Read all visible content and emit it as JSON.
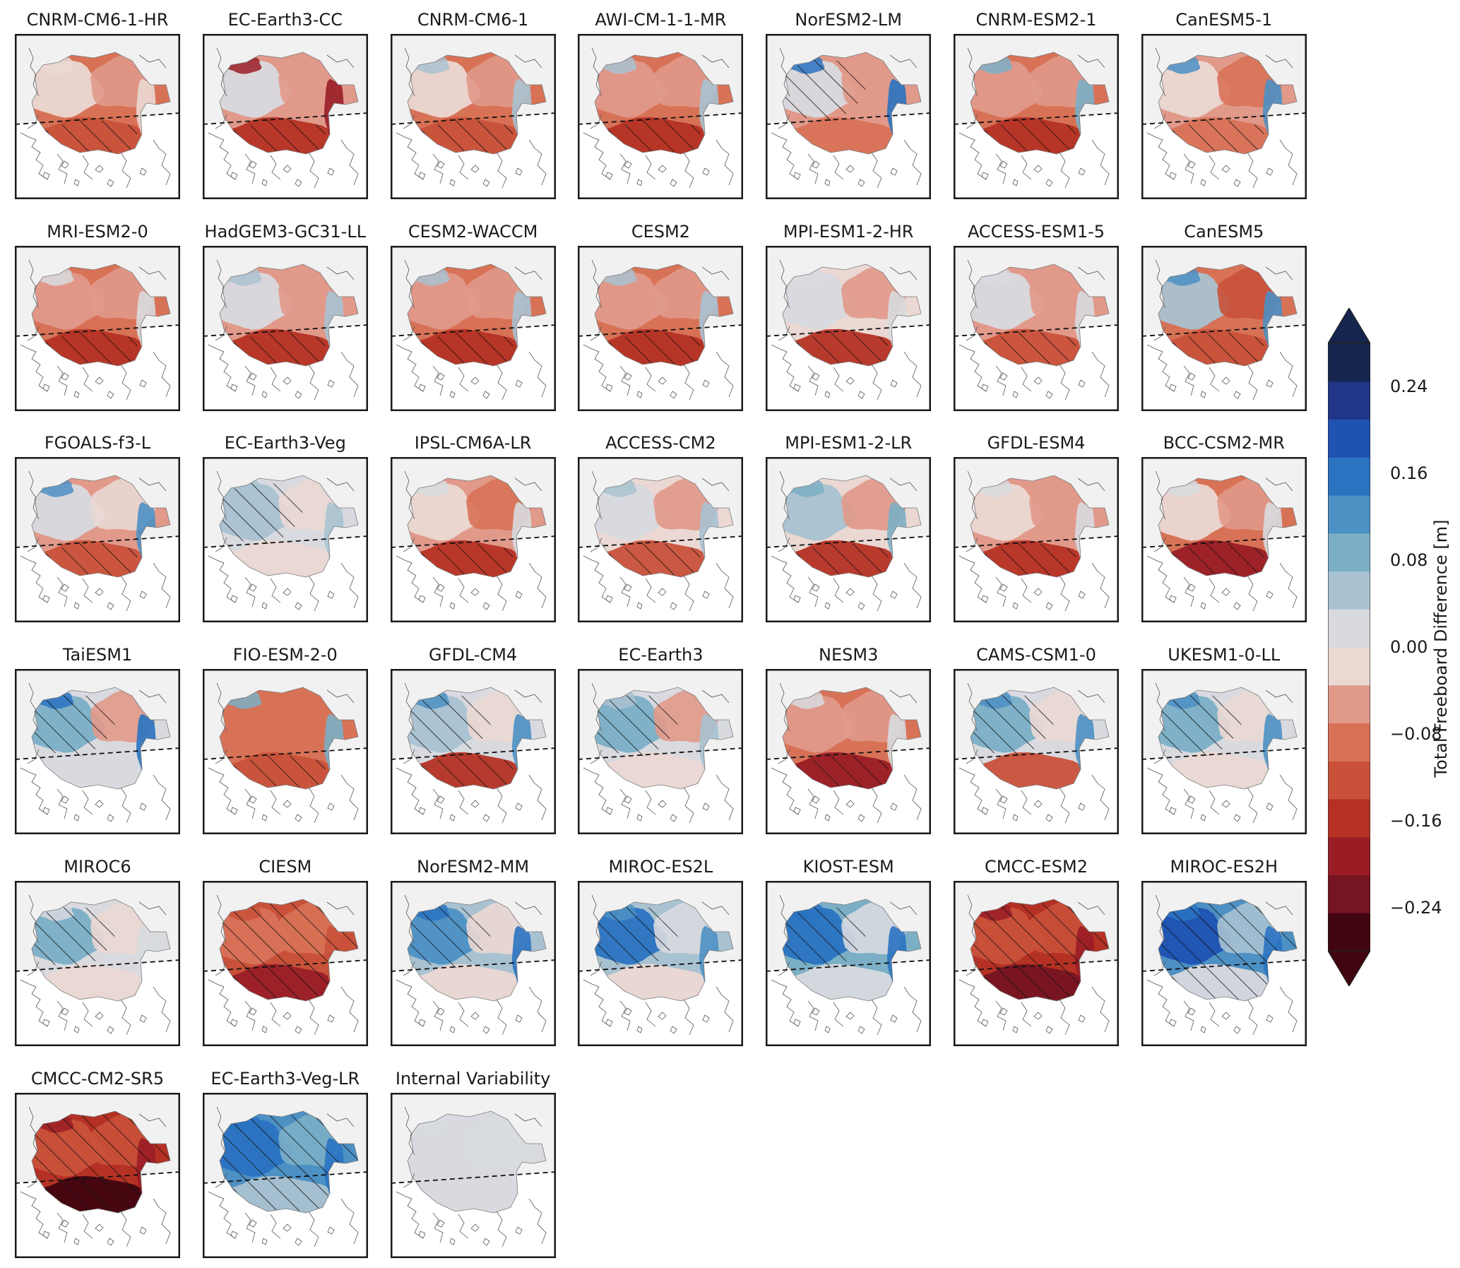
{
  "panels": [
    {
      "title": "CNRM-CM6-1-HR",
      "map": {
        "mean": -0.05,
        "west": 0.0,
        "south": -0.12,
        "east": -0.02,
        "coast": 0.0,
        "hatch": "south"
      }
    },
    {
      "title": "EC-Earth3-CC",
      "map": {
        "mean": -0.01,
        "west": 0.06,
        "south": -0.13,
        "east": -0.03,
        "coast": -0.18,
        "hatch": "south"
      }
    },
    {
      "title": "CNRM-CM6-1",
      "map": {
        "mean": -0.05,
        "west": 0.0,
        "south": -0.12,
        "east": -0.03,
        "coast": 0.1,
        "hatch": "south"
      }
    },
    {
      "title": "AWI-CM-1-1-MR",
      "map": {
        "mean": -0.06,
        "west": -0.02,
        "south": -0.14,
        "east": -0.03,
        "coast": 0.08,
        "hatch": "south"
      }
    },
    {
      "title": "NorESM2-LM",
      "map": {
        "mean": -0.02,
        "west": 0.05,
        "south": -0.05,
        "east": -0.03,
        "coast": 0.2,
        "hatch": "west"
      }
    },
    {
      "title": "CNRM-ESM2-1",
      "map": {
        "mean": -0.07,
        "west": -0.04,
        "south": -0.16,
        "east": -0.04,
        "coast": 0.12,
        "hatch": "south"
      }
    },
    {
      "title": "CanESM5-1",
      "map": {
        "mean": -0.03,
        "west": 0.02,
        "south": -0.08,
        "east": -0.06,
        "coast": 0.16,
        "hatch": "south"
      }
    },
    {
      "title": "MRI-ESM2-0",
      "map": {
        "mean": -0.05,
        "west": -0.03,
        "south": -0.14,
        "east": -0.03,
        "coast": 0.05,
        "hatch": "south"
      }
    },
    {
      "title": "HadGEM3-GC31-LL",
      "map": {
        "mean": -0.01,
        "west": 0.04,
        "south": -0.14,
        "east": -0.02,
        "coast": 0.08,
        "hatch": "south"
      }
    },
    {
      "title": "CESM2-WACCM",
      "map": {
        "mean": -0.05,
        "west": -0.02,
        "south": -0.14,
        "east": -0.03,
        "coast": 0.1,
        "hatch": "south"
      }
    },
    {
      "title": "CESM2",
      "map": {
        "mean": -0.06,
        "west": -0.04,
        "south": -0.14,
        "east": -0.04,
        "coast": 0.08,
        "hatch": "south"
      }
    },
    {
      "title": "MPI-ESM1-2-HR",
      "map": {
        "mean": 0.02,
        "west": 0.05,
        "south": -0.14,
        "east": -0.02,
        "coast": 0.06,
        "hatch": "south"
      }
    },
    {
      "title": "ACCESS-ESM1-5",
      "map": {
        "mean": -0.03,
        "west": 0.06,
        "south": -0.12,
        "east": -0.04,
        "coast": 0.06,
        "hatch": "south"
      }
    },
    {
      "title": "CanESM5",
      "map": {
        "mean": -0.05,
        "west": 0.08,
        "south": -0.12,
        "east": -0.1,
        "coast": 0.16,
        "hatch": "south"
      }
    },
    {
      "title": "FGOALS-f3-L",
      "map": {
        "mean": -0.03,
        "west": 0.06,
        "south": -0.1,
        "east": 0.02,
        "coast": 0.16,
        "hatch": "south"
      }
    },
    {
      "title": "EC-Earth3-Veg",
      "map": {
        "mean": 0.05,
        "west": 0.1,
        "south": 0.02,
        "east": 0.0,
        "coast": 0.1,
        "hatch": "west"
      }
    },
    {
      "title": "IPSL-CM6A-LR",
      "map": {
        "mean": -0.04,
        "west": 0.0,
        "south": -0.14,
        "east": -0.05,
        "coast": 0.06,
        "hatch": "south"
      }
    },
    {
      "title": "ACCESS-CM2",
      "map": {
        "mean": 0.02,
        "west": 0.06,
        "south": -0.12,
        "east": -0.02,
        "coast": 0.1,
        "hatch": "south"
      }
    },
    {
      "title": "MPI-ESM1-2-LR",
      "map": {
        "mean": 0.03,
        "west": 0.08,
        "south": -0.14,
        "east": -0.02,
        "coast": 0.12,
        "hatch": "south"
      }
    },
    {
      "title": "GFDL-ESM4",
      "map": {
        "mean": -0.02,
        "west": 0.02,
        "south": -0.16,
        "east": -0.02,
        "coast": 0.06,
        "hatch": "south"
      }
    },
    {
      "title": "BCC-CSM2-MR",
      "map": {
        "mean": -0.06,
        "west": 0.02,
        "south": -0.18,
        "east": -0.04,
        "coast": 0.06,
        "hatch": "south"
      }
    },
    {
      "title": "TaiESM1",
      "map": {
        "mean": 0.06,
        "west": 0.12,
        "south": 0.06,
        "east": -0.02,
        "coast": 0.2,
        "hatch": "west"
      }
    },
    {
      "title": "FIO-ESM-2-0",
      "map": {
        "mean": -0.07,
        "west": -0.05,
        "south": -0.12,
        "east": -0.06,
        "coast": 0.12,
        "hatch": "south"
      }
    },
    {
      "title": "GFDL-CM4",
      "map": {
        "mean": 0.04,
        "west": 0.1,
        "south": -0.16,
        "east": 0.0,
        "coast": 0.16,
        "hatch": "both"
      }
    },
    {
      "title": "EC-Earth3",
      "map": {
        "mean": 0.05,
        "west": 0.12,
        "south": 0.0,
        "east": -0.02,
        "coast": 0.08,
        "hatch": "west"
      }
    },
    {
      "title": "NESM3",
      "map": {
        "mean": -0.05,
        "west": -0.02,
        "south": -0.2,
        "east": -0.02,
        "coast": 0.06,
        "hatch": "south"
      }
    },
    {
      "title": "CAMS-CSM1-0",
      "map": {
        "mean": 0.05,
        "west": 0.12,
        "south": -0.1,
        "east": 0.02,
        "coast": 0.18,
        "hatch": "west"
      }
    },
    {
      "title": "UKESM1-0-LL",
      "map": {
        "mean": 0.06,
        "west": 0.14,
        "south": 0.02,
        "east": 0.0,
        "coast": 0.16,
        "hatch": "west"
      }
    },
    {
      "title": "MIROC6",
      "map": {
        "mean": 0.04,
        "west": 0.14,
        "south": 0.0,
        "east": 0.0,
        "coast": 0.06,
        "hatch": "west"
      }
    },
    {
      "title": "CIESM",
      "map": {
        "mean": -0.12,
        "west": -0.08,
        "south": -0.18,
        "east": -0.08,
        "coast": -0.1,
        "hatch": "all"
      }
    },
    {
      "title": "NorESM2-MM",
      "map": {
        "mean": 0.1,
        "west": 0.18,
        "south": 0.02,
        "east": 0.02,
        "coast": 0.2,
        "hatch": "west"
      }
    },
    {
      "title": "MIROC-ES2L",
      "map": {
        "mean": 0.1,
        "west": 0.2,
        "south": 0.02,
        "east": 0.04,
        "coast": 0.16,
        "hatch": "west"
      }
    },
    {
      "title": "KIOST-ESM",
      "map": {
        "mean": 0.14,
        "west": 0.2,
        "south": 0.04,
        "east": 0.06,
        "coast": 0.2,
        "hatch": "west"
      }
    },
    {
      "title": "CMCC-ESM2",
      "map": {
        "mean": -0.14,
        "west": -0.1,
        "south": -0.24,
        "east": -0.1,
        "coast": -0.2,
        "hatch": "all"
      }
    },
    {
      "title": "MIROC-ES2H",
      "map": {
        "mean": 0.16,
        "west": 0.24,
        "south": 0.06,
        "east": 0.1,
        "coast": 0.2,
        "hatch": "all"
      }
    },
    {
      "title": "CMCC-CM2-SR5",
      "map": {
        "mean": -0.16,
        "west": -0.12,
        "south": -0.26,
        "east": -0.12,
        "coast": -0.2,
        "hatch": "all"
      }
    },
    {
      "title": "EC-Earth3-Veg-LR",
      "map": {
        "mean": 0.18,
        "west": 0.2,
        "south": 0.1,
        "east": 0.12,
        "coast": 0.22,
        "hatch": "all"
      }
    },
    {
      "title": "Internal Variability",
      "map": {
        "mean": 0.07,
        "west": 0.07,
        "south": 0.07,
        "east": 0.07,
        "coast": 0.07,
        "hatch": "none"
      }
    }
  ],
  "colorbar": {
    "label": "Total Freeboard Difference [m]",
    "range": [
      -0.28,
      0.28
    ],
    "step": 0.04,
    "ticks": [
      {
        "value": 0.24,
        "label": "0.24"
      },
      {
        "value": 0.16,
        "label": "0.16"
      },
      {
        "value": 0.08,
        "label": "0.08"
      },
      {
        "value": 0.0,
        "label": "0.00"
      },
      {
        "value": -0.08,
        "label": "−0.08"
      },
      {
        "value": -0.16,
        "label": "−0.16"
      },
      {
        "value": -0.24,
        "label": "−0.24"
      }
    ],
    "extend": "both",
    "colors": [
      "#410510",
      "#761422",
      "#9a1d26",
      "#b53124",
      "#c9513a",
      "#d87257",
      "#e1998a",
      "#ebd8d3",
      "#d8dadf",
      "#a9c2d1",
      "#7bafc6",
      "#4c90c4",
      "#2a73c1",
      "#1f53b3",
      "#213686",
      "#15254d"
    ]
  }
}
